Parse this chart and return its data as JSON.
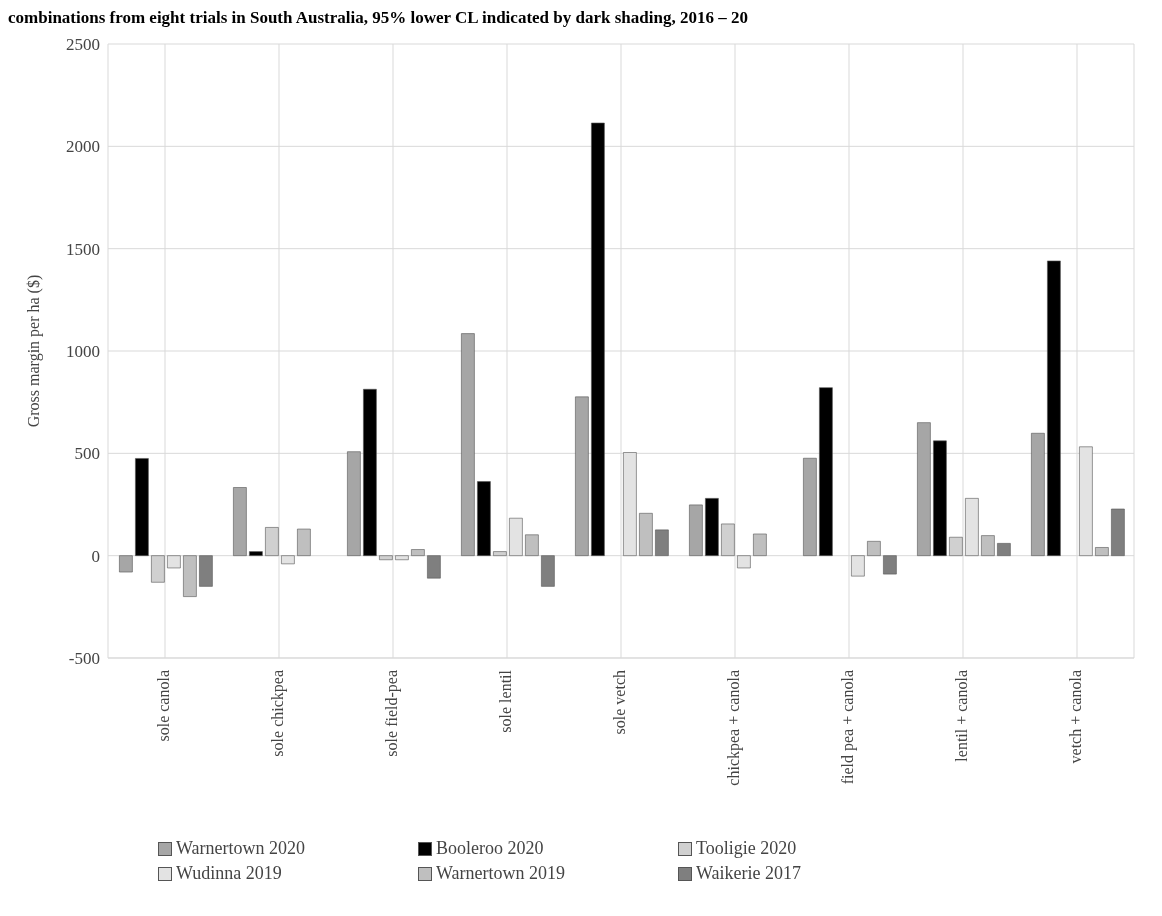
{
  "chart_data": {
    "type": "bar",
    "title": "combinations from eight trials in South Australia, 95% lower CL indicated by dark shading, 2016 – 20",
    "ylabel": "Gross margin per ha ($)",
    "categories": [
      "sole canola",
      "sole chickpea",
      "sole field-pea",
      "sole lentil",
      "sole vetch",
      "chickpea + canola",
      "field pea + canola",
      "lentil + canola",
      "vetch + canola"
    ],
    "series": [
      {
        "name": "Warnertown 2020",
        "color": "#a6a6a6",
        "values": [
          -80,
          333,
          508,
          1085,
          776,
          248,
          476,
          650,
          598
        ]
      },
      {
        "name": "Booleroo 2020",
        "color": "#000000",
        "values": [
          475,
          20,
          813,
          362,
          2114,
          280,
          821,
          561,
          1440
        ]
      },
      {
        "name": "Tooligie 2020",
        "color": "#d0d0d0",
        "values": [
          -130,
          138,
          -20,
          20,
          null,
          155,
          null,
          90,
          null
        ]
      },
      {
        "name": "Wudinna 2019",
        "color": "#e3e3e3",
        "values": [
          -60,
          -40,
          -20,
          183,
          504,
          -60,
          -100,
          280,
          532
        ]
      },
      {
        "name": "Warnertown 2019",
        "color": "#bfbfbf",
        "values": [
          -200,
          130,
          30,
          102,
          207,
          106,
          70,
          98,
          40
        ]
      },
      {
        "name": "Waikerie 2017",
        "color": "#7f7f7f",
        "values": [
          -150,
          null,
          -110,
          -150,
          126,
          null,
          -90,
          60,
          228
        ]
      }
    ],
    "ylim": [
      -500,
      2500
    ],
    "yticks": [
      -500,
      0,
      500,
      1000,
      1500,
      2000,
      2500
    ],
    "grid": true,
    "legend": "bottom"
  }
}
